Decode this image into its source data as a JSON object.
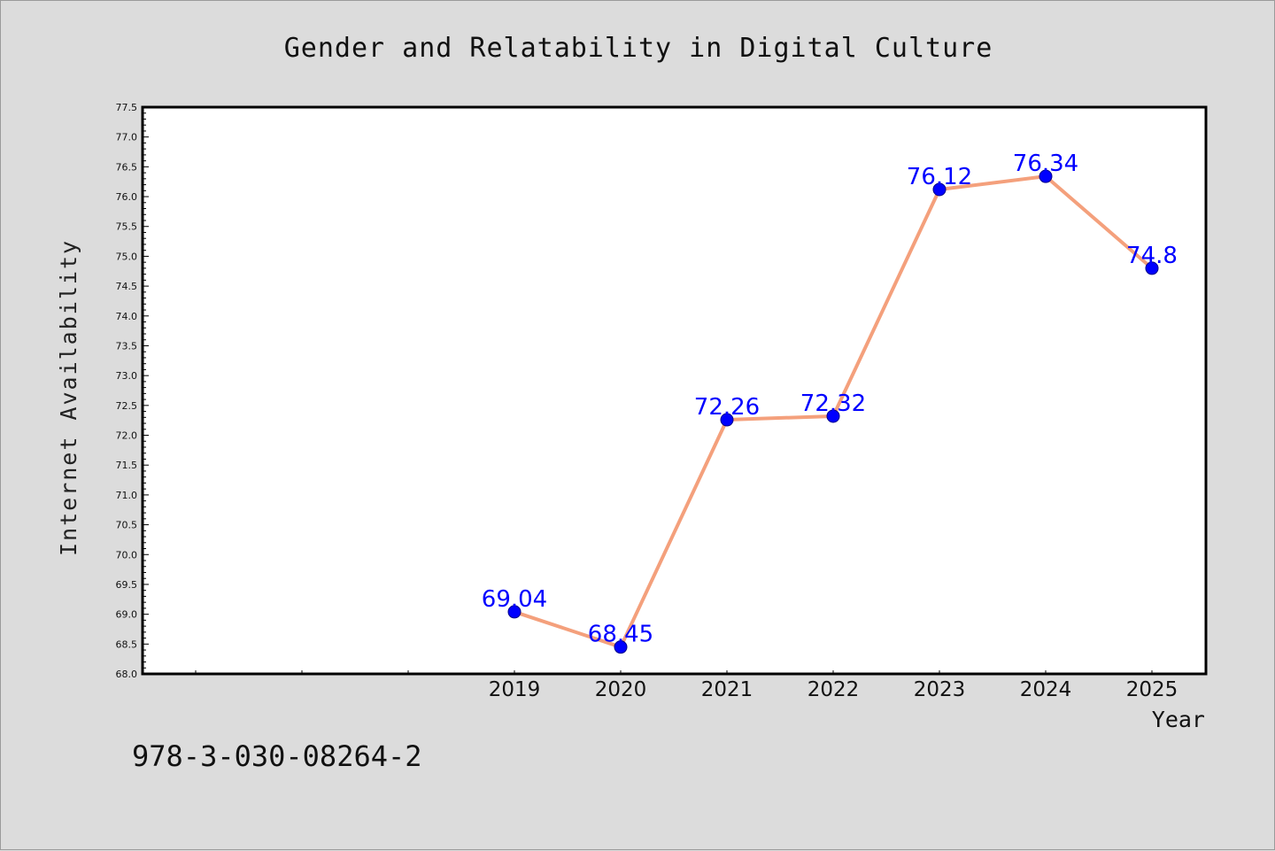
{
  "chart_data": {
    "type": "line",
    "title": "Gender and Relatability in Digital Culture",
    "xlabel": "Year",
    "ylabel": "Internet Availability",
    "categories": [
      "2019",
      "2020",
      "2021",
      "2022",
      "2023",
      "2024",
      "2025"
    ],
    "series": [
      {
        "values": [
          69.04,
          68.45,
          72.26,
          72.32,
          76.12,
          76.34,
          74.8
        ]
      }
    ],
    "data_labels": [
      "69.04",
      "68.45",
      "72.26",
      "72.32",
      "76.12",
      "76.34",
      "74.8"
    ],
    "ylim": [
      68.0,
      77.5
    ],
    "yticks": [
      "68.0",
      "68.5",
      "69.0",
      "69.5",
      "70.0",
      "70.5",
      "71.0",
      "71.5",
      "72.0",
      "72.5",
      "73.0",
      "73.5",
      "74.0",
      "74.5",
      "75.0",
      "75.5",
      "76.0",
      "76.5",
      "77.0",
      "77.5"
    ],
    "line_color": "#f4a07c",
    "marker_color": "#0000ff",
    "label_color": "#0000ff",
    "grid": false
  },
  "caption": "978-3-030-08264-2"
}
